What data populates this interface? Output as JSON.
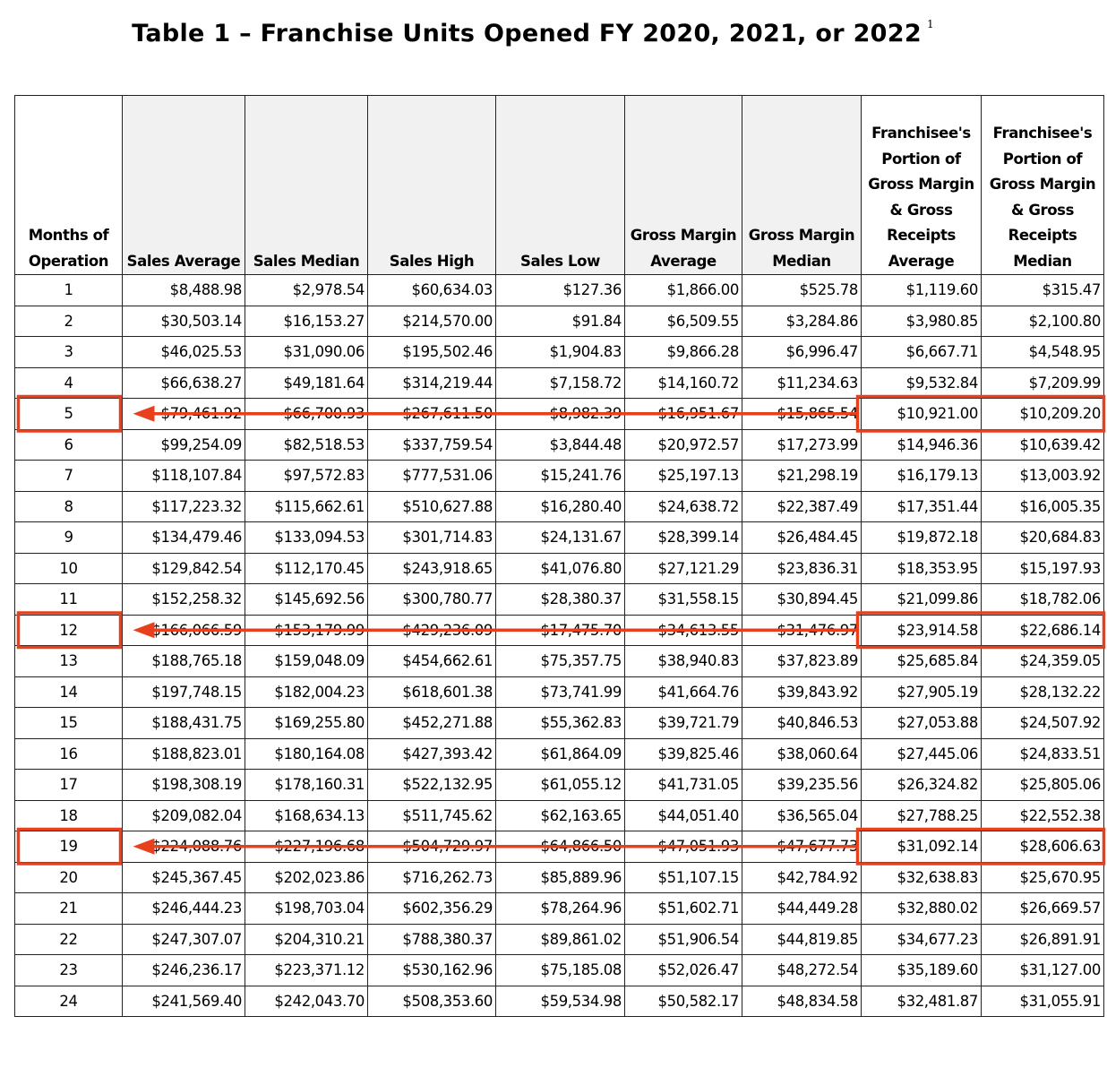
{
  "title": "Table 1 – Franchise Units Opened FY 2020, 2021, or 2022",
  "footnote_marker": "1",
  "columns": [
    "Months of Operation",
    "Sales Average",
    "Sales Median",
    "Sales High",
    "Sales Low",
    "Gross Margin Average",
    "Gross Margin Median",
    "Franchisee's Portion of Gross Margin & Gross Receipts Average",
    "Franchisee's Portion of Gross Margin & Gross Receipts Median"
  ],
  "rows": [
    [
      "1",
      "$8,488.98",
      "$2,978.54",
      "$60,634.03",
      "$127.36",
      "$1,866.00",
      "$525.78",
      "$1,119.60",
      "$315.47"
    ],
    [
      "2",
      "$30,503.14",
      "$16,153.27",
      "$214,570.00",
      "$91.84",
      "$6,509.55",
      "$3,284.86",
      "$3,980.85",
      "$2,100.80"
    ],
    [
      "3",
      "$46,025.53",
      "$31,090.06",
      "$195,502.46",
      "$1,904.83",
      "$9,866.28",
      "$6,996.47",
      "$6,667.71",
      "$4,548.95"
    ],
    [
      "4",
      "$66,638.27",
      "$49,181.64",
      "$314,219.44",
      "$7,158.72",
      "$14,160.72",
      "$11,234.63",
      "$9,532.84",
      "$7,209.99"
    ],
    [
      "5",
      "$79,461.92",
      "$66,700.93",
      "$267,611.50",
      "$8,982.39",
      "$16,951.67",
      "$15,865.54",
      "$10,921.00",
      "$10,209.20"
    ],
    [
      "6",
      "$99,254.09",
      "$82,518.53",
      "$337,759.54",
      "$3,844.48",
      "$20,972.57",
      "$17,273.99",
      "$14,946.36",
      "$10,639.42"
    ],
    [
      "7",
      "$118,107.84",
      "$97,572.83",
      "$777,531.06",
      "$15,241.76",
      "$25,197.13",
      "$21,298.19",
      "$16,179.13",
      "$13,003.92"
    ],
    [
      "8",
      "$117,223.32",
      "$115,662.61",
      "$510,627.88",
      "$16,280.40",
      "$24,638.72",
      "$22,387.49",
      "$17,351.44",
      "$16,005.35"
    ],
    [
      "9",
      "$134,479.46",
      "$133,094.53",
      "$301,714.83",
      "$24,131.67",
      "$28,399.14",
      "$26,484.45",
      "$19,872.18",
      "$20,684.83"
    ],
    [
      "10",
      "$129,842.54",
      "$112,170.45",
      "$243,918.65",
      "$41,076.80",
      "$27,121.29",
      "$23,836.31",
      "$18,353.95",
      "$15,197.93"
    ],
    [
      "11",
      "$152,258.32",
      "$145,692.56",
      "$300,780.77",
      "$28,380.37",
      "$31,558.15",
      "$30,894.45",
      "$21,099.86",
      "$18,782.06"
    ],
    [
      "12",
      "$166,066.59",
      "$153,179.99",
      "$429,236.09",
      "$17,475.70",
      "$34,613.55",
      "$31,476.97",
      "$23,914.58",
      "$22,686.14"
    ],
    [
      "13",
      "$188,765.18",
      "$159,048.09",
      "$454,662.61",
      "$75,357.75",
      "$38,940.83",
      "$37,823.89",
      "$25,685.84",
      "$24,359.05"
    ],
    [
      "14",
      "$197,748.15",
      "$182,004.23",
      "$618,601.38",
      "$73,741.99",
      "$41,664.76",
      "$39,843.92",
      "$27,905.19",
      "$28,132.22"
    ],
    [
      "15",
      "$188,431.75",
      "$169,255.80",
      "$452,271.88",
      "$55,362.83",
      "$39,721.79",
      "$40,846.53",
      "$27,053.88",
      "$24,507.92"
    ],
    [
      "16",
      "$188,823.01",
      "$180,164.08",
      "$427,393.42",
      "$61,864.09",
      "$39,825.46",
      "$38,060.64",
      "$27,445.06",
      "$24,833.51"
    ],
    [
      "17",
      "$198,308.19",
      "$178,160.31",
      "$522,132.95",
      "$61,055.12",
      "$41,731.05",
      "$39,235.56",
      "$26,324.82",
      "$25,805.06"
    ],
    [
      "18",
      "$209,082.04",
      "$168,634.13",
      "$511,745.62",
      "$62,163.65",
      "$44,051.40",
      "$36,565.04",
      "$27,788.25",
      "$22,552.38"
    ],
    [
      "19",
      "$224,088.76",
      "$227,196.68",
      "$504,729.97",
      "$64,866.50",
      "$47,051.93",
      "$47,677.73",
      "$31,092.14",
      "$28,606.63"
    ],
    [
      "20",
      "$245,367.45",
      "$202,023.86",
      "$716,262.73",
      "$85,889.96",
      "$51,107.15",
      "$42,784.92",
      "$32,638.83",
      "$25,670.95"
    ],
    [
      "21",
      "$246,444.23",
      "$198,703.04",
      "$602,356.29",
      "$78,264.96",
      "$51,602.71",
      "$44,449.28",
      "$32,880.02",
      "$26,669.57"
    ],
    [
      "22",
      "$247,307.07",
      "$204,310.21",
      "$788,380.37",
      "$89,861.02",
      "$51,906.54",
      "$44,819.85",
      "$34,677.23",
      "$26,891.91"
    ],
    [
      "23",
      "$246,236.17",
      "$223,371.12",
      "$530,162.96",
      "$75,185.08",
      "$52,026.47",
      "$48,272.54",
      "$35,189.60",
      "$31,127.00"
    ],
    [
      "24",
      "$241,569.40",
      "$242,043.70",
      "$508,353.60",
      "$59,534.98",
      "$50,582.17",
      "$48,834.58",
      "$32,481.87",
      "$31,055.91"
    ]
  ],
  "highlighted_months": [
    "5",
    "12",
    "19"
  ],
  "annotation_color": "#e8401c"
}
